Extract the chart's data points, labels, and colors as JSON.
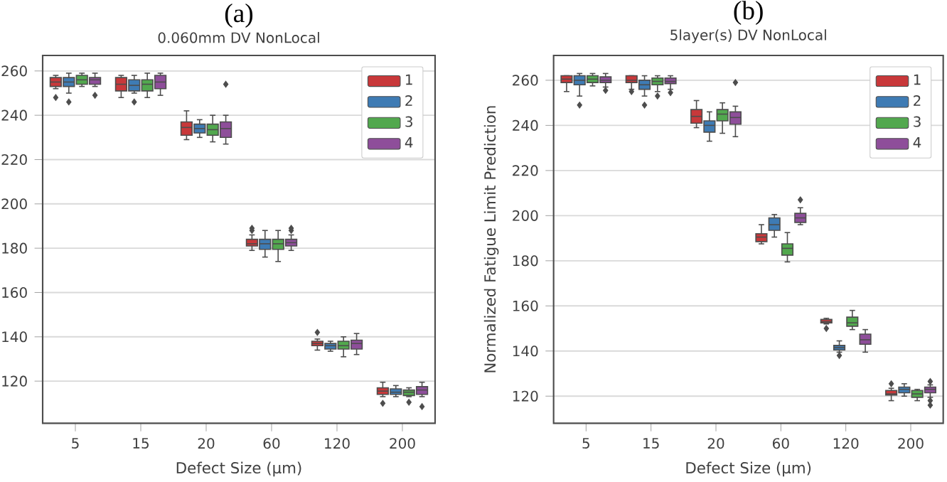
{
  "chart_data": [
    {
      "type": "box",
      "title": "(a)",
      "subtitle": "0.060mm DV NonLocal",
      "xlabel": "Defect Size (μm)",
      "categories": [
        "5",
        "15",
        "20",
        "60",
        "120",
        "200"
      ],
      "ylim": [
        101,
        267
      ],
      "yticks": [
        120,
        140,
        160,
        180,
        200,
        220,
        240,
        260
      ],
      "grid": "y",
      "legend": "top right",
      "series": [
        {
          "name": "1",
          "color": "#c8383a",
          "boxes": [
            {
              "low": 252,
              "q1": 253,
              "median": 255,
              "q3": 257,
              "high": 258,
              "outliers": [
                248
              ]
            },
            {
              "low": 248,
              "q1": 251,
              "median": 254,
              "q3": 257,
              "high": 258
            },
            {
              "low": 229,
              "q1": 231,
              "median": 234.5,
              "q3": 237,
              "high": 242
            },
            {
              "low": 179,
              "q1": 181,
              "median": 182,
              "q3": 184,
              "high": 186,
              "outliers": [
                188,
                189
              ]
            },
            {
              "low": 134,
              "q1": 136,
              "median": 137,
              "q3": 138,
              "high": 139,
              "outliers": [
                142
              ]
            },
            {
              "low": 113,
              "q1": 114,
              "median": 115.5,
              "q3": 117,
              "high": 119.5,
              "outliers": [
                110
              ]
            }
          ]
        },
        {
          "name": "2",
          "color": "#3e7bb4",
          "boxes": [
            {
              "low": 250,
              "q1": 253,
              "median": 255,
              "q3": 257,
              "high": 259,
              "outliers": [
                246
              ]
            },
            {
              "low": 250,
              "q1": 251,
              "median": 253.5,
              "q3": 256,
              "high": 258,
              "outliers": [
                246
              ]
            },
            {
              "low": 230,
              "q1": 232,
              "median": 234,
              "q3": 236,
              "high": 238
            },
            {
              "low": 176,
              "q1": 179.5,
              "median": 182,
              "q3": 184,
              "high": 188
            },
            {
              "low": 133.5,
              "q1": 134.5,
              "median": 136,
              "q3": 137,
              "high": 138
            },
            {
              "low": 113,
              "q1": 114,
              "median": 115,
              "q3": 116.5,
              "high": 118
            }
          ]
        },
        {
          "name": "3",
          "color": "#52a84e",
          "boxes": [
            {
              "low": 253,
              "q1": 254,
              "median": 256,
              "q3": 258,
              "high": 259
            },
            {
              "low": 248,
              "q1": 251,
              "median": 254,
              "q3": 256,
              "high": 259
            },
            {
              "low": 228,
              "q1": 231,
              "median": 233.5,
              "q3": 236,
              "high": 240
            },
            {
              "low": 174,
              "q1": 179.5,
              "median": 182,
              "q3": 184,
              "high": 188
            },
            {
              "low": 131,
              "q1": 134.5,
              "median": 136,
              "q3": 138,
              "high": 140
            },
            {
              "low": 113,
              "q1": 113.5,
              "median": 115,
              "q3": 116,
              "high": 117,
              "outliers": [
                110.5
              ]
            }
          ]
        },
        {
          "name": "4",
          "color": "#8e4e9a",
          "boxes": [
            {
              "low": 253,
              "q1": 254,
              "median": 256,
              "q3": 257,
              "high": 259,
              "outliers": [
                249
              ]
            },
            {
              "low": 249,
              "q1": 252,
              "median": 255,
              "q3": 258,
              "high": 259
            },
            {
              "low": 227,
              "q1": 230,
              "median": 234,
              "q3": 237,
              "high": 240,
              "outliers": [
                254
              ]
            },
            {
              "low": 179,
              "q1": 181,
              "median": 182.5,
              "q3": 184,
              "high": 186,
              "outliers": [
                188,
                189
              ]
            },
            {
              "low": 132,
              "q1": 134.5,
              "median": 137,
              "q3": 138.5,
              "high": 141.5
            },
            {
              "low": 113,
              "q1": 114,
              "median": 116,
              "q3": 117.5,
              "high": 119.5,
              "outliers": [
                108.5
              ]
            }
          ]
        }
      ]
    },
    {
      "type": "box",
      "title": "(b)",
      "subtitle": "5layer(s) DV NonLocal",
      "xlabel": "Defect Size (μm)",
      "ylabel": "Normalized Fatigue Limit Prediction",
      "categories": [
        "5",
        "15",
        "20",
        "60",
        "120",
        "200"
      ],
      "ylim": [
        108,
        271
      ],
      "yticks": [
        120,
        140,
        160,
        180,
        200,
        220,
        240,
        260
      ],
      "grid": "y",
      "legend": "top right",
      "series": [
        {
          "name": "1",
          "color": "#c8383a",
          "boxes": [
            {
              "low": 255,
              "q1": 259,
              "median": 260.5,
              "q3": 262,
              "high": 262
            },
            {
              "low": 256,
              "q1": 259,
              "median": 260,
              "q3": 262,
              "high": 262,
              "outliers": [
                255
              ]
            },
            {
              "low": 239,
              "q1": 241,
              "median": 244,
              "q3": 247,
              "high": 251
            },
            {
              "low": 187.5,
              "q1": 188.5,
              "median": 190.5,
              "q3": 192,
              "high": 196
            },
            {
              "low": 152,
              "q1": 152.5,
              "median": 153,
              "q3": 154,
              "high": 154.5,
              "outliers": [
                150
              ]
            },
            {
              "low": 118,
              "q1": 120.5,
              "median": 121,
              "q3": 122.5,
              "high": 123.5,
              "outliers": [
                125.5
              ]
            }
          ]
        },
        {
          "name": "2",
          "color": "#3e7bb4",
          "boxes": [
            {
              "low": 253,
              "q1": 258,
              "median": 260,
              "q3": 262,
              "high": 263,
              "outliers": [
                249
              ]
            },
            {
              "low": 253,
              "q1": 256,
              "median": 258,
              "q3": 260,
              "high": 262,
              "outliers": [
                249
              ]
            },
            {
              "low": 233,
              "q1": 237,
              "median": 240,
              "q3": 242,
              "high": 246
            },
            {
              "low": 190.5,
              "q1": 193.5,
              "median": 196,
              "q3": 199,
              "high": 200.5
            },
            {
              "low": 139.5,
              "q1": 140.5,
              "median": 141.5,
              "q3": 142.5,
              "high": 144.5,
              "outliers": [
                138
              ]
            },
            {
              "low": 120,
              "q1": 121.5,
              "median": 123,
              "q3": 124,
              "high": 125.5
            }
          ]
        },
        {
          "name": "3",
          "color": "#52a84e",
          "boxes": [
            {
              "low": 257.5,
              "q1": 259,
              "median": 260.5,
              "q3": 262,
              "high": 263
            },
            {
              "low": 255,
              "q1": 258,
              "median": 259.5,
              "q3": 261,
              "high": 262,
              "outliers": [
                253
              ]
            },
            {
              "low": 236.5,
              "q1": 242,
              "median": 245,
              "q3": 247,
              "high": 250
            },
            {
              "low": 179.5,
              "q1": 182.5,
              "median": 185.5,
              "q3": 187.5,
              "high": 192.5
            },
            {
              "low": 149.5,
              "q1": 151,
              "median": 152.5,
              "q3": 155,
              "high": 158
            },
            {
              "low": 118,
              "q1": 119.5,
              "median": 121,
              "q3": 122.5,
              "high": 123
            }
          ]
        },
        {
          "name": "4",
          "color": "#8e4e9a",
          "boxes": [
            {
              "low": 257,
              "q1": 259,
              "median": 260,
              "q3": 261.5,
              "high": 263,
              "outliers": [
                255.5
              ]
            },
            {
              "low": 256,
              "q1": 258.5,
              "median": 259.5,
              "q3": 261,
              "high": 262,
              "outliers": [
                254.5
              ]
            },
            {
              "low": 235,
              "q1": 240.5,
              "median": 243.5,
              "q3": 246,
              "high": 248.5,
              "outliers": [
                259
              ]
            },
            {
              "low": 196,
              "q1": 197,
              "median": 199,
              "q3": 201,
              "high": 203.5,
              "outliers": [
                207
              ]
            },
            {
              "low": 139.5,
              "q1": 143,
              "median": 145,
              "q3": 147.5,
              "high": 149.5
            },
            {
              "low": 119.5,
              "q1": 121.5,
              "median": 123,
              "q3": 124,
              "high": 125,
              "outliers": [
                126.5,
                118,
                116
              ]
            }
          ]
        }
      ]
    }
  ]
}
